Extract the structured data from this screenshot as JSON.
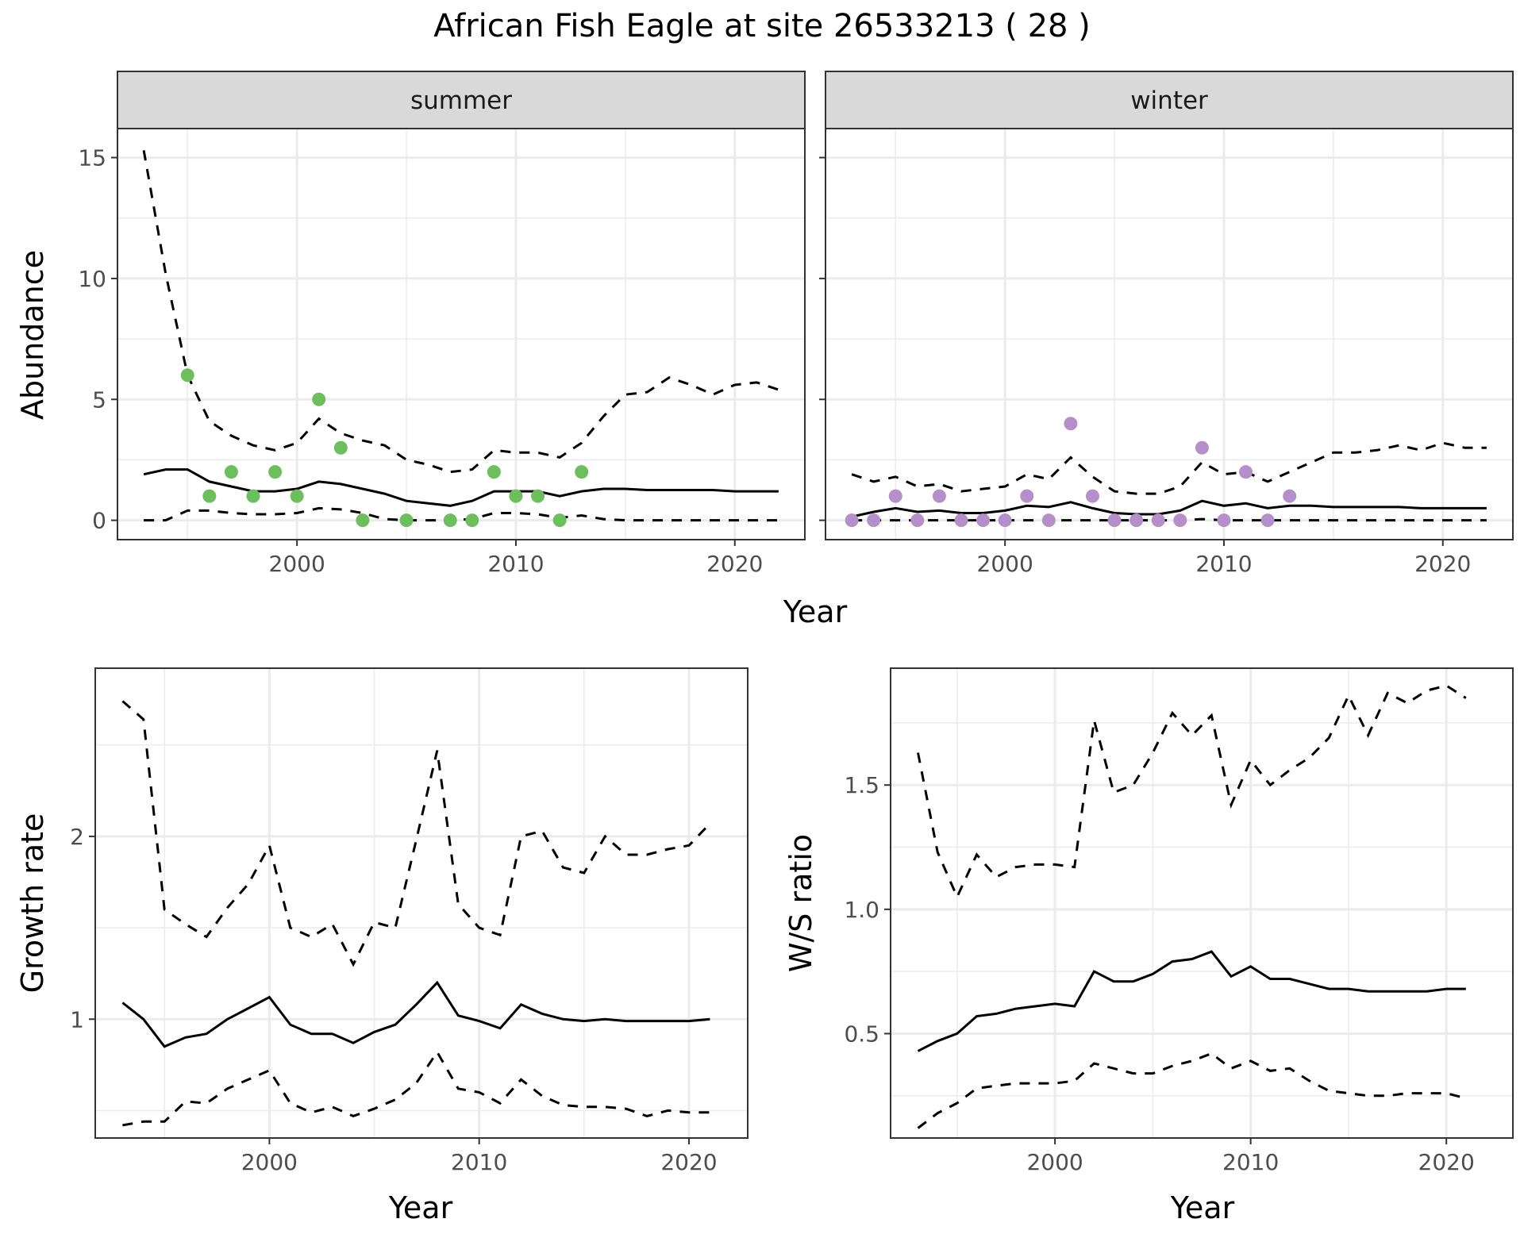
{
  "chart_data": [
    {
      "type": "line",
      "title": "African Fish Eagle at site 26533213 ( 28 )",
      "panel": "summer",
      "facet_label": "summer",
      "xlabel": "Year",
      "ylabel": "Abundance",
      "xlim": [
        1991.8,
        2023.2
      ],
      "ylim": [
        -0.8,
        16.2
      ],
      "xticks": [
        2000,
        2010,
        2020
      ],
      "yticks": [
        0,
        5,
        10,
        15
      ],
      "grid": true,
      "point_color": "#6DBE5C",
      "series": [
        {
          "name": "upper",
          "style": "dashed",
          "x": [
            1993,
            1994,
            1995,
            1996,
            1997,
            1998,
            1999,
            2000,
            2001,
            2002,
            2003,
            2004,
            2005,
            2006,
            2007,
            2008,
            2009,
            2010,
            2011,
            2012,
            2013,
            2014,
            2015,
            2016,
            2017,
            2018,
            2019,
            2020,
            2021,
            2022
          ],
          "values": [
            15.3,
            10.2,
            6.0,
            4.1,
            3.5,
            3.1,
            2.9,
            3.2,
            4.2,
            3.6,
            3.3,
            3.1,
            2.5,
            2.3,
            2.0,
            2.1,
            2.9,
            2.8,
            2.8,
            2.6,
            3.2,
            4.3,
            5.2,
            5.3,
            5.9,
            5.6,
            5.2,
            5.6,
            5.7,
            5.4
          ]
        },
        {
          "name": "mean",
          "style": "solid",
          "x": [
            1993,
            1994,
            1995,
            1996,
            1997,
            1998,
            1999,
            2000,
            2001,
            2002,
            2003,
            2004,
            2005,
            2006,
            2007,
            2008,
            2009,
            2010,
            2011,
            2012,
            2013,
            2014,
            2015,
            2016,
            2017,
            2018,
            2019,
            2020,
            2021,
            2022
          ],
          "values": [
            1.9,
            2.1,
            2.1,
            1.6,
            1.4,
            1.2,
            1.2,
            1.3,
            1.6,
            1.5,
            1.3,
            1.1,
            0.8,
            0.7,
            0.6,
            0.8,
            1.2,
            1.2,
            1.2,
            1.0,
            1.2,
            1.3,
            1.3,
            1.25,
            1.25,
            1.25,
            1.25,
            1.2,
            1.2,
            1.2
          ]
        },
        {
          "name": "lower",
          "style": "dashed",
          "x": [
            1993,
            1994,
            1995,
            1996,
            1997,
            1998,
            1999,
            2000,
            2001,
            2002,
            2003,
            2004,
            2005,
            2006,
            2007,
            2008,
            2009,
            2010,
            2011,
            2012,
            2013,
            2014,
            2015,
            2016,
            2017,
            2018,
            2019,
            2020,
            2021,
            2022
          ],
          "values": [
            0.0,
            0.0,
            0.4,
            0.4,
            0.3,
            0.25,
            0.25,
            0.3,
            0.5,
            0.45,
            0.3,
            0.05,
            0.0,
            0.0,
            0.0,
            0.05,
            0.3,
            0.3,
            0.25,
            0.1,
            0.2,
            0.05,
            0.0,
            0.0,
            0.0,
            0.0,
            0.0,
            0.0,
            0.0,
            0.0
          ]
        },
        {
          "name": "observed",
          "style": "points",
          "x": [
            1995,
            1996,
            1997,
            1998,
            1999,
            2000,
            2001,
            2002,
            2003,
            2005,
            2007,
            2008,
            2009,
            2010,
            2011,
            2012,
            2013
          ],
          "values": [
            6,
            1,
            2,
            1,
            2,
            1,
            5,
            3,
            0,
            0,
            0,
            0,
            2,
            1,
            1,
            0,
            2
          ]
        }
      ]
    },
    {
      "type": "line",
      "panel": "winter",
      "facet_label": "winter",
      "xlabel": "Year",
      "ylabel": "Abundance",
      "xlim": [
        1991.8,
        2023.2
      ],
      "ylim": [
        -0.8,
        16.2
      ],
      "xticks": [
        2000,
        2010,
        2020
      ],
      "yticks": [
        0,
        5,
        10,
        15
      ],
      "grid": true,
      "point_color": "#B58FC8",
      "series": [
        {
          "name": "upper",
          "style": "dashed",
          "x": [
            1993,
            1994,
            1995,
            1996,
            1997,
            1998,
            1999,
            2000,
            2001,
            2002,
            2003,
            2004,
            2005,
            2006,
            2007,
            2008,
            2009,
            2010,
            2011,
            2012,
            2013,
            2014,
            2015,
            2016,
            2017,
            2018,
            2019,
            2020,
            2021,
            2022
          ],
          "values": [
            1.9,
            1.6,
            1.8,
            1.4,
            1.5,
            1.2,
            1.3,
            1.4,
            1.9,
            1.7,
            2.6,
            1.8,
            1.2,
            1.1,
            1.1,
            1.4,
            2.4,
            1.9,
            2.0,
            1.6,
            2.0,
            2.4,
            2.8,
            2.8,
            2.9,
            3.1,
            2.9,
            3.2,
            3.0,
            3.0
          ]
        },
        {
          "name": "mean",
          "style": "solid",
          "x": [
            1993,
            1994,
            1995,
            1996,
            1997,
            1998,
            1999,
            2000,
            2001,
            2002,
            2003,
            2004,
            2005,
            2006,
            2007,
            2008,
            2009,
            2010,
            2011,
            2012,
            2013,
            2014,
            2015,
            2016,
            2017,
            2018,
            2019,
            2020,
            2021,
            2022
          ],
          "values": [
            0.15,
            0.35,
            0.5,
            0.35,
            0.4,
            0.3,
            0.3,
            0.4,
            0.6,
            0.55,
            0.75,
            0.5,
            0.3,
            0.25,
            0.25,
            0.4,
            0.8,
            0.6,
            0.7,
            0.5,
            0.6,
            0.6,
            0.55,
            0.55,
            0.55,
            0.55,
            0.5,
            0.5,
            0.5,
            0.5
          ]
        },
        {
          "name": "lower",
          "style": "dashed",
          "x": [
            1993,
            1994,
            1995,
            1996,
            1997,
            1998,
            1999,
            2000,
            2001,
            2002,
            2003,
            2004,
            2005,
            2006,
            2007,
            2008,
            2009,
            2010,
            2011,
            2012,
            2013,
            2014,
            2015,
            2016,
            2017,
            2018,
            2019,
            2020,
            2021,
            2022
          ],
          "values": [
            0,
            0,
            0,
            0,
            0,
            0,
            0,
            0,
            0,
            0,
            0,
            0,
            0,
            0,
            0,
            0,
            0.05,
            0,
            0,
            0,
            0,
            0,
            0,
            0,
            0,
            0,
            0,
            0,
            0,
            0
          ]
        },
        {
          "name": "observed",
          "style": "points",
          "x": [
            1993,
            1994,
            1995,
            1996,
            1997,
            1998,
            1999,
            2000,
            2001,
            2002,
            2003,
            2004,
            2005,
            2006,
            2007,
            2008,
            2009,
            2010,
            2011,
            2012,
            2013
          ],
          "values": [
            0,
            0,
            1,
            0,
            1,
            0,
            0,
            0,
            1,
            0,
            4,
            1,
            0,
            0,
            0,
            0,
            3,
            0,
            2,
            0,
            1
          ]
        }
      ]
    },
    {
      "type": "line",
      "panel": "growth",
      "xlabel": "Year",
      "ylabel": "Growth rate",
      "xlim": [
        1991.7,
        2022.8
      ],
      "ylim": [
        0.35,
        2.92
      ],
      "xticks": [
        2000,
        2010,
        2020
      ],
      "yticks": [
        1,
        2
      ],
      "grid": true,
      "series": [
        {
          "name": "upper",
          "style": "dashed",
          "x": [
            1993,
            1994,
            1995,
            1996,
            1997,
            1998,
            1999,
            2000,
            2001,
            2002,
            2003,
            2004,
            2005,
            2006,
            2007,
            2008,
            2009,
            2010,
            2011,
            2012,
            2013,
            2014,
            2015,
            2016,
            2017,
            2018,
            2019,
            2020,
            2021
          ],
          "values": [
            2.74,
            2.64,
            1.6,
            1.52,
            1.45,
            1.61,
            1.74,
            1.95,
            1.5,
            1.45,
            1.52,
            1.3,
            1.53,
            1.5,
            1.98,
            2.47,
            1.63,
            1.5,
            1.46,
            2.0,
            2.03,
            1.83,
            1.8,
            2.0,
            1.9,
            1.9,
            1.93,
            1.95,
            2.07
          ]
        },
        {
          "name": "mean",
          "style": "solid",
          "x": [
            1993,
            1994,
            1995,
            1996,
            1997,
            1998,
            1999,
            2000,
            2001,
            2002,
            2003,
            2004,
            2005,
            2006,
            2007,
            2008,
            2009,
            2010,
            2011,
            2012,
            2013,
            2014,
            2015,
            2016,
            2017,
            2018,
            2019,
            2020,
            2021
          ],
          "values": [
            1.09,
            1.0,
            0.85,
            0.9,
            0.92,
            1.0,
            1.06,
            1.12,
            0.97,
            0.92,
            0.92,
            0.87,
            0.93,
            0.97,
            1.08,
            1.2,
            1.02,
            0.99,
            0.95,
            1.08,
            1.03,
            1.0,
            0.99,
            1.0,
            0.99,
            0.99,
            0.99,
            0.99,
            1.0
          ]
        },
        {
          "name": "lower",
          "style": "dashed",
          "x": [
            1993,
            1994,
            1995,
            1996,
            1997,
            1998,
            1999,
            2000,
            2001,
            2002,
            2003,
            2004,
            2005,
            2006,
            2007,
            2008,
            2009,
            2010,
            2011,
            2012,
            2013,
            2014,
            2015,
            2016,
            2017,
            2018,
            2019,
            2020,
            2021
          ],
          "values": [
            0.42,
            0.44,
            0.44,
            0.55,
            0.54,
            0.62,
            0.67,
            0.72,
            0.54,
            0.49,
            0.52,
            0.47,
            0.51,
            0.56,
            0.65,
            0.82,
            0.62,
            0.6,
            0.54,
            0.67,
            0.58,
            0.53,
            0.52,
            0.52,
            0.51,
            0.47,
            0.5,
            0.49,
            0.49
          ]
        }
      ]
    },
    {
      "type": "line",
      "panel": "ws_ratio",
      "xlabel": "Year",
      "ylabel": "W/S ratio",
      "xlim": [
        1991.6,
        2023.4
      ],
      "ylim": [
        0.08,
        1.97
      ],
      "xticks": [
        2000,
        2010,
        2020
      ],
      "yticks": [
        0.5,
        1.0,
        1.5
      ],
      "ytick_labels": [
        "0.5",
        "1.0",
        "1.5"
      ],
      "grid": true,
      "series": [
        {
          "name": "upper",
          "style": "dashed",
          "x": [
            1993,
            1994,
            1995,
            1996,
            1997,
            1998,
            1999,
            2000,
            2001,
            2002,
            2003,
            2004,
            2005,
            2006,
            2007,
            2008,
            2009,
            2010,
            2011,
            2012,
            2013,
            2014,
            2015,
            2016,
            2017,
            2018,
            2019,
            2020,
            2021
          ],
          "values": [
            1.63,
            1.23,
            1.05,
            1.22,
            1.13,
            1.17,
            1.18,
            1.18,
            1.17,
            1.76,
            1.47,
            1.5,
            1.63,
            1.79,
            1.7,
            1.78,
            1.42,
            1.6,
            1.5,
            1.56,
            1.61,
            1.69,
            1.86,
            1.7,
            1.87,
            1.83,
            1.88,
            1.9,
            1.85
          ]
        },
        {
          "name": "mean",
          "style": "solid",
          "x": [
            1993,
            1994,
            1995,
            1996,
            1997,
            1998,
            1999,
            2000,
            2001,
            2002,
            2003,
            2004,
            2005,
            2006,
            2007,
            2008,
            2009,
            2010,
            2011,
            2012,
            2013,
            2014,
            2015,
            2016,
            2017,
            2018,
            2019,
            2020,
            2021
          ],
          "values": [
            0.43,
            0.47,
            0.5,
            0.57,
            0.58,
            0.6,
            0.61,
            0.62,
            0.61,
            0.75,
            0.71,
            0.71,
            0.74,
            0.79,
            0.8,
            0.83,
            0.73,
            0.77,
            0.72,
            0.72,
            0.7,
            0.68,
            0.68,
            0.67,
            0.67,
            0.67,
            0.67,
            0.68,
            0.68
          ]
        },
        {
          "name": "lower",
          "style": "dashed",
          "x": [
            1993,
            1994,
            1995,
            1996,
            1997,
            1998,
            1999,
            2000,
            2001,
            2002,
            2003,
            2004,
            2005,
            2006,
            2007,
            2008,
            2009,
            2010,
            2011,
            2012,
            2013,
            2014,
            2015,
            2016,
            2017,
            2018,
            2019,
            2020,
            2021
          ],
          "values": [
            0.12,
            0.18,
            0.22,
            0.28,
            0.29,
            0.3,
            0.3,
            0.3,
            0.31,
            0.38,
            0.36,
            0.34,
            0.34,
            0.37,
            0.39,
            0.42,
            0.36,
            0.39,
            0.35,
            0.36,
            0.31,
            0.27,
            0.26,
            0.25,
            0.25,
            0.26,
            0.26,
            0.26,
            0.24
          ]
        }
      ]
    }
  ],
  "figure": {
    "title": "African Fish Eagle at site 26533213 ( 28 )",
    "shared_xlabel_top": "Year"
  }
}
